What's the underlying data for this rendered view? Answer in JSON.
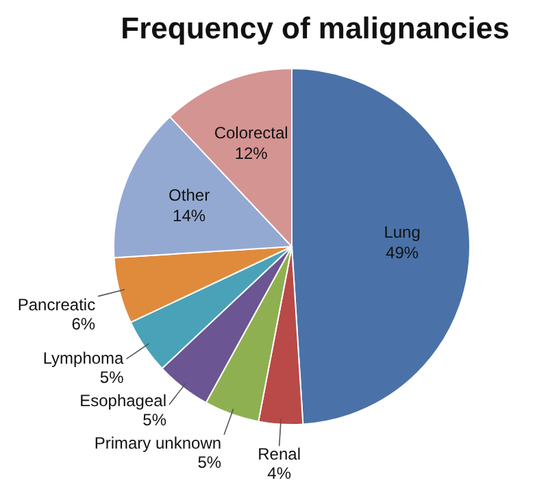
{
  "chart_data": {
    "type": "pie",
    "title": "Frequency of malignancies",
    "categories": [
      "Lung",
      "Renal",
      "Primary unknown",
      "Esophageal",
      "Lymphoma",
      "Pancreatic",
      "Other",
      "Colorectal"
    ],
    "values": [
      49,
      4,
      5,
      5,
      5,
      6,
      14,
      12
    ],
    "colors": [
      "#4a72a8",
      "#b94a48",
      "#8fb050",
      "#6b5592",
      "#4aa2b8",
      "#e08a3c",
      "#93a9d2",
      "#d49492"
    ],
    "value_labels": [
      "49%",
      "4%",
      "5%",
      "5%",
      "5%",
      "6%",
      "14%",
      "12%"
    ]
  }
}
